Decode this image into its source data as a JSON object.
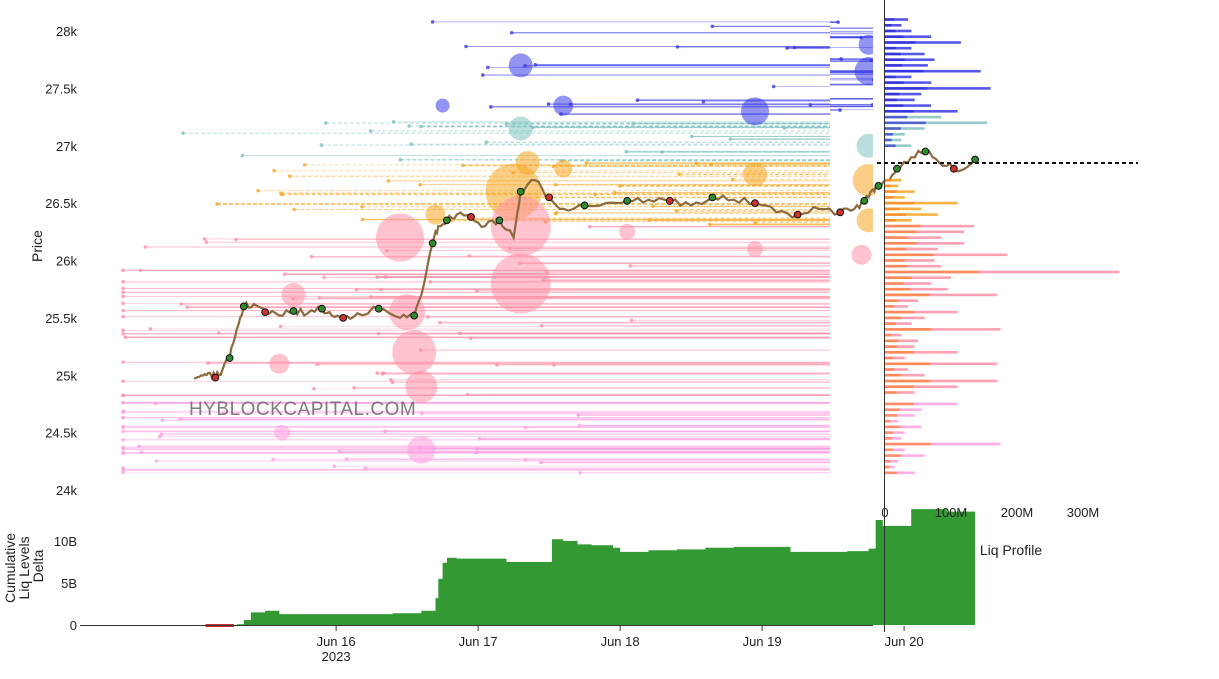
{
  "watermark": "HYBLOCKCAPITAL.COM",
  "price_chart": {
    "ylabel": "Price",
    "y_ticks": [
      "24k",
      "24.5k",
      "25k",
      "25.5k",
      "26k",
      "26.5k",
      "27k",
      "27.5k",
      "28k"
    ],
    "y_tick_values": [
      24000,
      24500,
      25000,
      25500,
      26000,
      26500,
      27000,
      27500,
      28000
    ],
    "ylim": [
      23900,
      28150
    ]
  },
  "delta_chart": {
    "ylabel_lines": [
      "Cumulative",
      "Liq Levels",
      "Delta"
    ],
    "y_ticks": [
      "0",
      "5B",
      "10B"
    ],
    "y_tick_values": [
      0,
      5,
      10
    ],
    "ylim": [
      0,
      14
    ]
  },
  "x_axis": {
    "ticks": [
      "Jun 16",
      "Jun 17",
      "Jun 18",
      "Jun 19",
      "Jun 20"
    ],
    "tick_days": [
      1,
      2,
      3,
      4,
      5
    ],
    "year_label": "2023",
    "xlim_days": [
      -0.75,
      5.75
    ]
  },
  "profile_chart": {
    "xlabel": "Liq Profile",
    "x_ticks": [
      "0",
      "100M",
      "200M",
      "300M"
    ],
    "x_tick_values": [
      0,
      100,
      200,
      300
    ],
    "current_price": 26850
  },
  "colors": {
    "price_line": "#8b6a3d",
    "up_marker": "#2e8b2e",
    "down_marker": "#d03030",
    "short_liq": "#3a3ae6",
    "short_liq_mid": "#7fc2c0",
    "long_liq_near": "#f5a623",
    "long_liq": "#ff8fa8",
    "long_liq_far": "#ff9fe0",
    "delta_area": "#339933",
    "delta_negative": "#d23030"
  },
  "chart_data": [
    {
      "type": "line",
      "title": "",
      "ylabel": "Price",
      "ylim": [
        23900,
        28150
      ],
      "x": [
        0,
        0.05,
        0.1,
        0.15,
        0.2,
        0.25,
        0.3,
        0.35,
        0.42,
        0.5,
        0.6,
        0.7,
        0.8,
        0.9,
        0.97,
        1.05,
        1.15,
        1.3,
        1.45,
        1.55,
        1.62,
        1.68,
        1.72,
        1.78,
        1.85,
        1.95,
        2.05,
        2.15,
        2.25,
        2.3,
        2.4,
        2.5,
        2.6,
        2.75,
        2.9,
        3.05,
        3.2,
        3.35,
        3.5,
        3.65,
        3.8,
        3.95,
        4.1,
        4.25,
        4.4,
        4.55,
        4.65,
        4.72,
        4.78,
        4.82,
        4.88,
        4.95,
        5.05,
        5.15,
        5.25,
        5.35,
        5.45,
        5.5
      ],
      "series": [
        {
          "values": [
            24970,
            25000,
            25020,
            24980,
            25050,
            25150,
            25400,
            25600,
            25620,
            25550,
            25520,
            25560,
            25540,
            25580,
            25520,
            25500,
            25540,
            25580,
            25500,
            25520,
            25800,
            26150,
            26300,
            26350,
            26400,
            26380,
            26300,
            26350,
            26200,
            26600,
            26700,
            26550,
            26450,
            26480,
            26500,
            26520,
            26530,
            26520,
            26480,
            26550,
            26530,
            26500,
            26420,
            26400,
            26450,
            26420,
            26450,
            26520,
            26620,
            26650,
            26700,
            26800,
            26900,
            26950,
            26850,
            26800,
            26820,
            26880
          ]
        }
      ]
    },
    {
      "type": "area",
      "title": "",
      "ylabel": "Cumulative Liq Levels Delta",
      "ylim": [
        0,
        14
      ],
      "x": [
        0,
        0.1,
        0.2,
        0.25,
        0.3,
        0.35,
        0.4,
        0.5,
        0.6,
        0.8,
        1.0,
        1.1,
        1.2,
        1.4,
        1.6,
        1.7,
        1.72,
        1.75,
        1.78,
        1.85,
        1.95,
        2.1,
        2.2,
        2.5,
        2.52,
        2.6,
        2.7,
        2.8,
        2.95,
        3.0,
        3.2,
        3.4,
        3.6,
        3.8,
        4.0,
        4.2,
        4.4,
        4.6,
        4.75,
        4.8,
        4.85,
        5.0,
        5.05,
        5.3,
        5.5
      ],
      "values": [
        0,
        -0.1,
        -0.2,
        -0.1,
        0.1,
        0.6,
        1.5,
        1.7,
        1.3,
        1.3,
        1.3,
        1.3,
        1.3,
        1.4,
        1.7,
        3.2,
        5.5,
        7.4,
        8.0,
        7.9,
        7.9,
        7.9,
        7.5,
        7.5,
        10.2,
        10.0,
        9.6,
        9.5,
        9.2,
        8.7,
        8.9,
        9.0,
        9.2,
        9.3,
        9.3,
        8.7,
        8.7,
        8.8,
        9.1,
        12.5,
        11.8,
        11.8,
        13.8,
        13.5,
        13.4
      ]
    },
    {
      "type": "bar",
      "title": "",
      "xlabel": "Liq Profile",
      "orientation": "horizontal",
      "price_levels": [
        28100,
        28050,
        28000,
        27950,
        27900,
        27850,
        27800,
        27750,
        27700,
        27650,
        27600,
        27550,
        27500,
        27450,
        27400,
        27350,
        27300,
        27250,
        27200,
        27150,
        27100,
        27050,
        27000,
        26700,
        26650,
        26600,
        26550,
        26500,
        26450,
        26400,
        26350,
        26300,
        26250,
        26200,
        26150,
        26100,
        26050,
        26000,
        25950,
        25900,
        25850,
        25800,
        25750,
        25700,
        25650,
        25600,
        25550,
        25500,
        25450,
        25400,
        25350,
        25300,
        25250,
        25200,
        25150,
        25100,
        25050,
        25000,
        24950,
        24900,
        24850,
        24750,
        24700,
        24650,
        24600,
        24550,
        24500,
        24450,
        24400,
        24350,
        24300,
        24250,
        24200,
        24150
      ],
      "values": [
        35,
        25,
        40,
        70,
        115,
        40,
        60,
        75,
        65,
        145,
        40,
        70,
        160,
        55,
        45,
        70,
        110,
        85,
        155,
        60,
        30,
        25,
        40,
        25,
        20,
        45,
        30,
        110,
        55,
        80,
        40,
        135,
        120,
        85,
        120,
        80,
        185,
        75,
        85,
        355,
        100,
        70,
        95,
        170,
        50,
        35,
        110,
        60,
        40,
        175,
        25,
        50,
        45,
        110,
        30,
        170,
        35,
        60,
        170,
        110,
        45,
        110,
        55,
        45,
        20,
        55,
        30,
        25,
        175,
        30,
        60,
        20,
        15,
        45
      ],
      "xlim": [
        0,
        380
      ],
      "x_ticks": [
        0,
        100,
        200,
        300
      ]
    }
  ]
}
